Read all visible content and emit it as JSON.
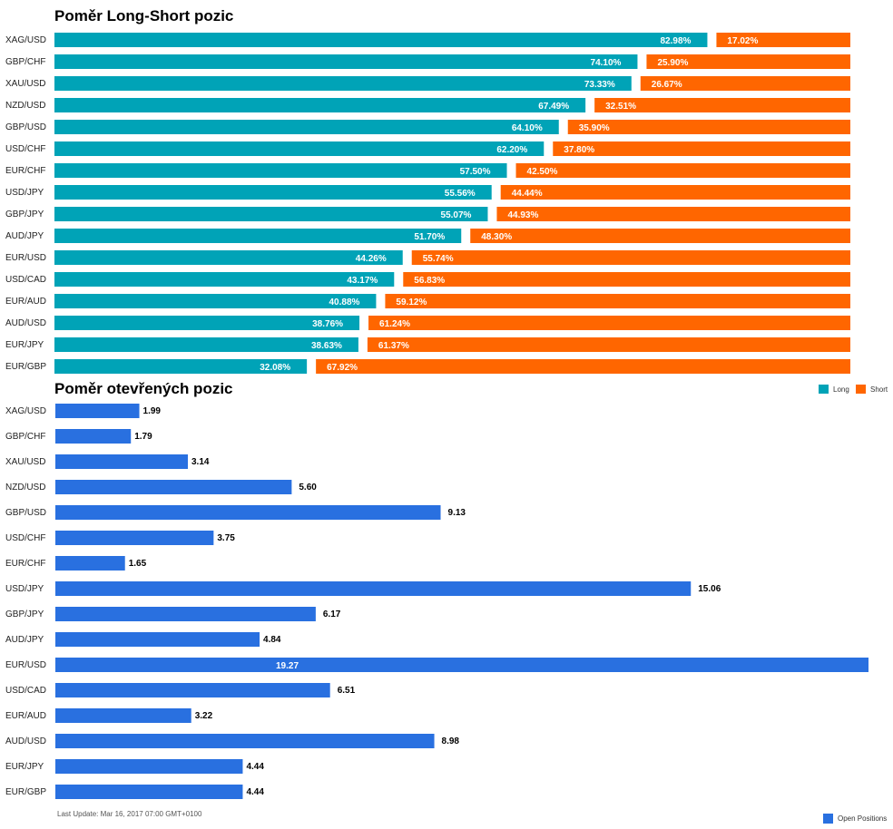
{
  "colors": {
    "long": "#00a3b7",
    "short": "#ff6600",
    "open": "#2970e0"
  },
  "chart_data": [
    {
      "type": "bar",
      "orientation": "horizontal-stacked-100",
      "title": "Poměr Long-Short pozic",
      "categories": [
        "XAG/USD",
        "GBP/CHF",
        "XAU/USD",
        "NZD/USD",
        "GBP/USD",
        "USD/CHF",
        "EUR/CHF",
        "USD/JPY",
        "GBP/JPY",
        "AUD/JPY",
        "EUR/USD",
        "USD/CAD",
        "EUR/AUD",
        "AUD/USD",
        "EUR/JPY",
        "EUR/GBP"
      ],
      "series": [
        {
          "name": "Long",
          "values": [
            82.98,
            74.1,
            73.33,
            67.49,
            64.1,
            62.2,
            57.5,
            55.56,
            55.07,
            51.7,
            44.26,
            43.17,
            40.88,
            38.76,
            38.63,
            32.08
          ],
          "labels": [
            "82.98%",
            "74.10%",
            "73.33%",
            "67.49%",
            "64.10%",
            "62.20%",
            "57.50%",
            "55.56%",
            "55.07%",
            "51.70%",
            "44.26%",
            "43.17%",
            "40.88%",
            "38.76%",
            "38.63%",
            "32.08%"
          ]
        },
        {
          "name": "Short",
          "values": [
            17.02,
            25.9,
            26.67,
            32.51,
            35.9,
            37.8,
            42.5,
            44.44,
            44.93,
            48.3,
            55.74,
            56.83,
            59.12,
            61.24,
            61.37,
            67.92
          ],
          "labels": [
            "17.02%",
            "25.90%",
            "26.67%",
            "32.51%",
            "35.90%",
            "37.80%",
            "42.50%",
            "44.44%",
            "44.93%",
            "48.30%",
            "55.74%",
            "56.83%",
            "59.12%",
            "61.24%",
            "61.37%",
            "67.92%"
          ]
        }
      ],
      "legend": [
        "Long",
        "Short"
      ],
      "legend_position": "bottom-right"
    },
    {
      "type": "bar",
      "orientation": "horizontal",
      "title": "Poměr otevřených pozic",
      "categories": [
        "XAG/USD",
        "GBP/CHF",
        "XAU/USD",
        "NZD/USD",
        "GBP/USD",
        "USD/CHF",
        "EUR/CHF",
        "USD/JPY",
        "GBP/JPY",
        "AUD/JPY",
        "EUR/USD",
        "USD/CAD",
        "EUR/AUD",
        "AUD/USD",
        "EUR/JPY",
        "EUR/GBP"
      ],
      "series": [
        {
          "name": "Open Positions",
          "values": [
            1.99,
            1.79,
            3.14,
            5.6,
            9.13,
            3.75,
            1.65,
            15.06,
            6.17,
            4.84,
            19.27,
            6.51,
            3.22,
            8.98,
            4.44,
            4.44
          ],
          "labels": [
            "1.99",
            "1.79",
            "3.14",
            "5.60",
            "9.13",
            "3.75",
            "1.65",
            "15.06",
            "6.17",
            "4.84",
            "19.27",
            "6.51",
            "3.22",
            "8.98",
            "4.44",
            "4.44"
          ]
        }
      ],
      "xlim": [
        0,
        19.27
      ],
      "legend": [
        "Open Positions"
      ],
      "legend_position": "bottom-right",
      "footnote": "Last Update: Mar 16, 2017 07:00 GMT+0100"
    }
  ]
}
